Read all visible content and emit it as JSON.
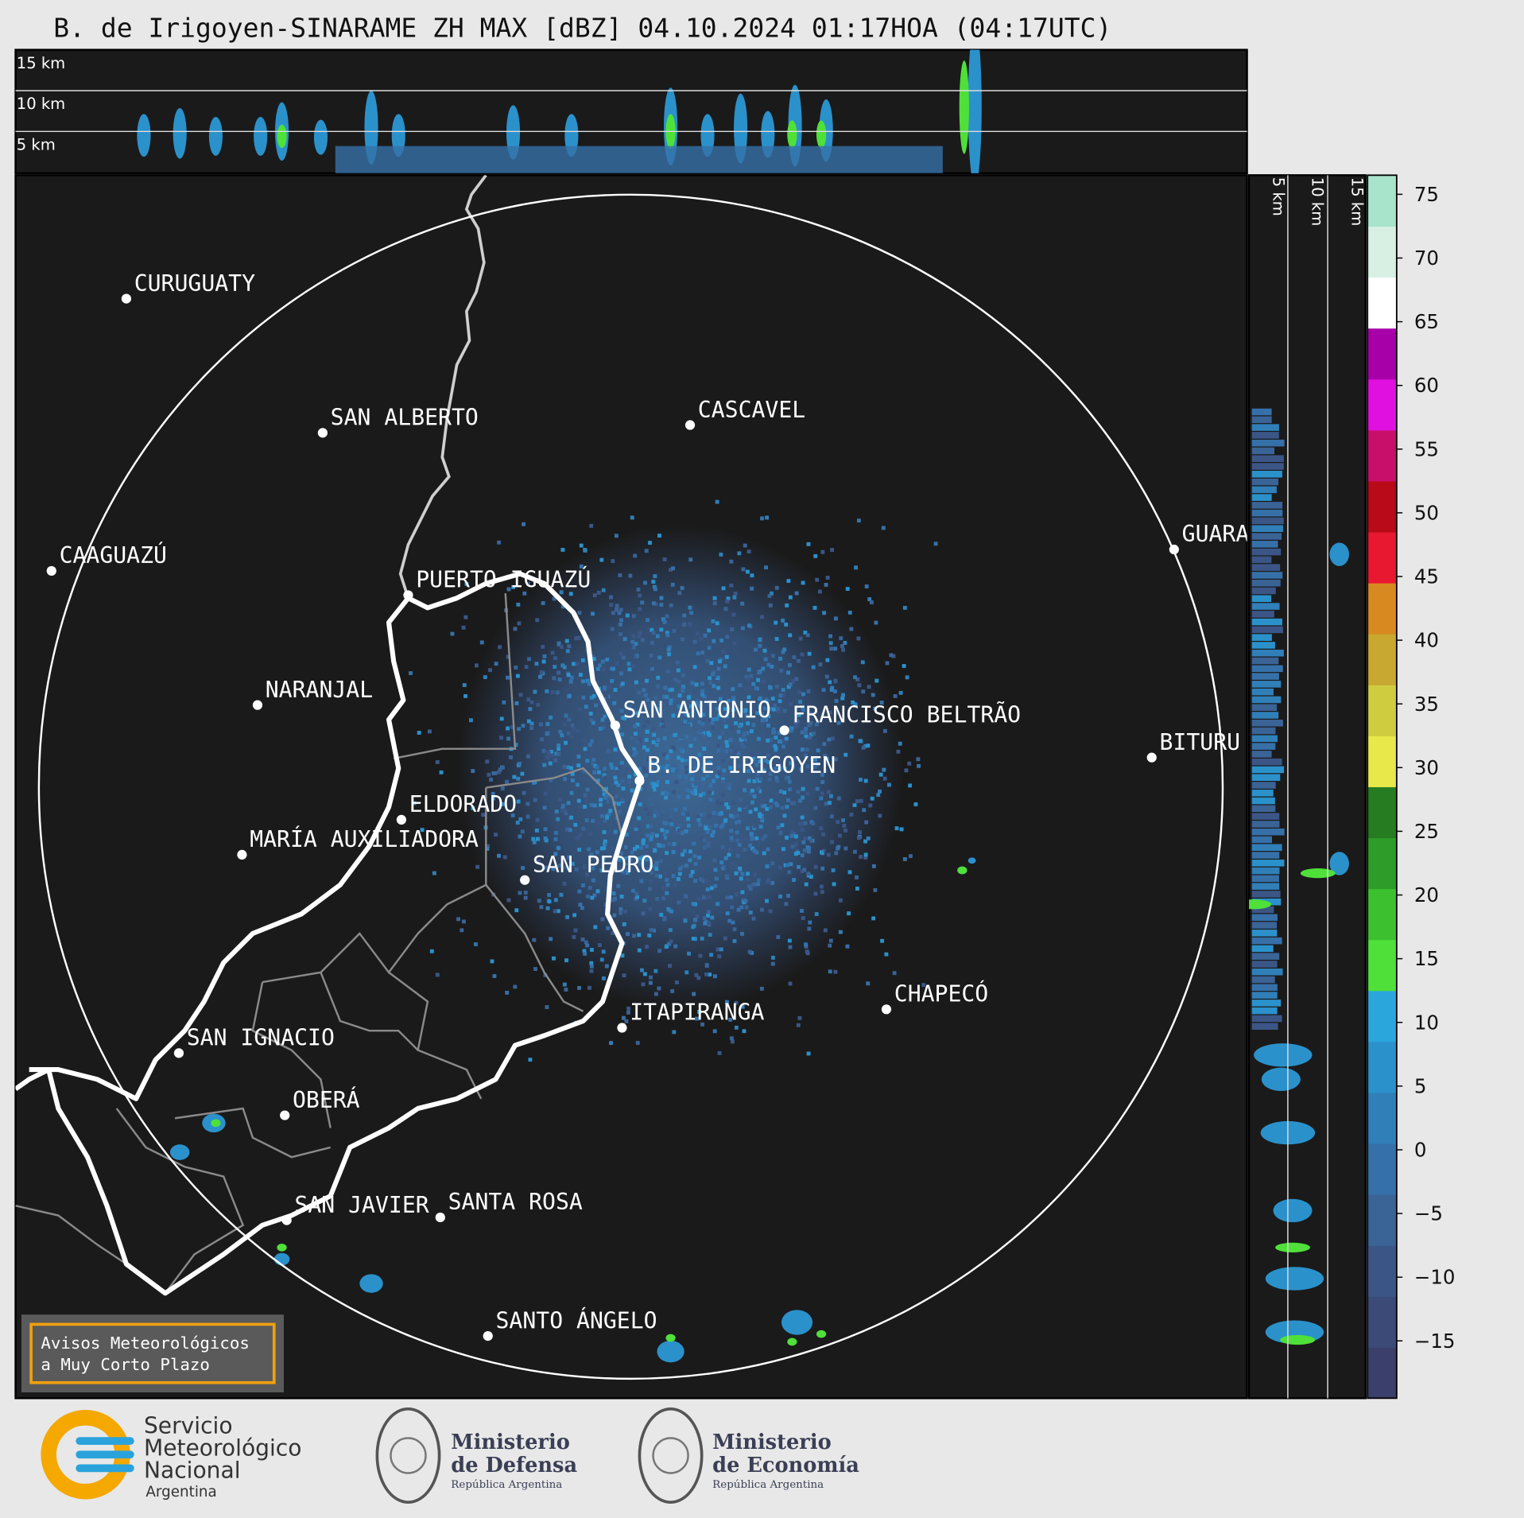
{
  "header": {
    "title": "B. de Irigoyen-SINARAME ZH MAX [dBZ] 04.10.2024 01:17HOA (04:17UTC)"
  },
  "top_panel": {
    "height_labels": [
      "15 km",
      "10 km",
      "5 km"
    ]
  },
  "side_panel": {
    "height_labels": [
      "5 km",
      "10 km",
      "15 km"
    ]
  },
  "cities": [
    {
      "label": "CURUGUATY"
    },
    {
      "label": "SAN ALBERTO"
    },
    {
      "label": "CASCAVEL"
    },
    {
      "label": "CAAGUAZÚ"
    },
    {
      "label": "GUARA"
    },
    {
      "label": "PUERTO IGUAZÚ"
    },
    {
      "label": "NARANJAL"
    },
    {
      "label": "SAN ANTONIO"
    },
    {
      "label": "FRANCISCO BELTRÃO"
    },
    {
      "label": "BITURU"
    },
    {
      "label": "B. DE IRIGOYEN"
    },
    {
      "label": "ELDORADO"
    },
    {
      "label": "MARÍA AUXILIADORA"
    },
    {
      "label": "SAN PEDRO"
    },
    {
      "label": "CHAPECÓ"
    },
    {
      "label": "ITAPIRANGA"
    },
    {
      "label": "SAN IGNACIO"
    },
    {
      "label": "OBERÁ"
    },
    {
      "label": "SAN JAVIER"
    },
    {
      "label": "SANTA ROSA"
    },
    {
      "label": "SANTO ÁNGELO"
    }
  ],
  "colorbar": {
    "range": [
      -19.5,
      76.5
    ],
    "ticks": [
      75,
      70,
      65,
      60,
      55,
      50,
      45,
      40,
      35,
      30,
      25,
      20,
      15,
      10,
      5,
      0,
      {
        "value": -5,
        "label": "−5"
      },
      {
        "value": -10,
        "label": "−10"
      },
      {
        "value": -15,
        "label": "−15"
      }
    ],
    "colors": [
      "#3b3f6b",
      "#3c4a78",
      "#3b5686",
      "#3a6396",
      "#3670a8",
      "#307fb8",
      "#2b91cb",
      "#2aa6dc",
      "#4fe03a",
      "#3cc030",
      "#2e9c28",
      "#267c20",
      "#e8e84a",
      "#d0cc40",
      "#c8a830",
      "#d88a20",
      "#e81830",
      "#b80a18",
      "#c8106a",
      "#e010e0",
      "#a800a8",
      "#ffffff",
      "#d8f0e4",
      "#a8e4cc"
    ]
  },
  "notice": {
    "lines": [
      "Avisos Meteorológicos",
      "a Muy Corto Plazo"
    ]
  },
  "logos": {
    "smn": [
      "Servicio",
      "Meteorológico",
      "Nacional",
      "Argentina"
    ],
    "defensa": [
      "Ministerio",
      "de Defensa",
      "República Argentina"
    ],
    "economia": [
      "Ministerio",
      "de Economía",
      "República Argentina"
    ]
  }
}
